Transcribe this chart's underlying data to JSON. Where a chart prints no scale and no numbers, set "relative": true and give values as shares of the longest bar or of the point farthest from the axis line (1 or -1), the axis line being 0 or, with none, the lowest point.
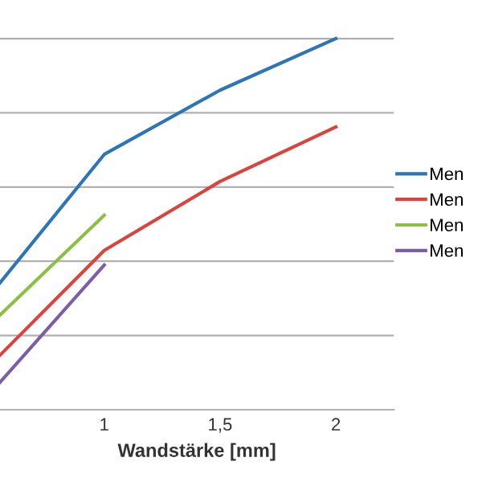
{
  "chart_data": {
    "type": "line",
    "xlabel": "Wandstärke [mm]",
    "relative": true,
    "xlim": [
      0.55,
      2.25
    ],
    "xticks": [
      1,
      {
        "value": 1.5,
        "label": "1,5"
      },
      2
    ],
    "grid": "y",
    "legend": "right",
    "marker": "none",
    "series": [
      {
        "name": "Men",
        "color": "#2e75b6",
        "x": [
          0.55,
          1,
          1.5,
          2
        ],
        "values": [
          0.342,
          0.688,
          0.861,
          1.0
        ]
      },
      {
        "name": "Men",
        "color": "#d9443e",
        "x": [
          0.55,
          1,
          1.5,
          2
        ],
        "values": [
          0.147,
          0.429,
          0.615,
          0.762
        ]
      },
      {
        "name": "Men",
        "color": "#8cbf45",
        "x": [
          0.55,
          1
        ],
        "values": [
          0.255,
          0.524
        ]
      },
      {
        "name": "Men",
        "color": "#7b5ea7",
        "x": [
          0.55,
          1
        ],
        "values": [
          0.074,
          0.39
        ]
      }
    ]
  }
}
